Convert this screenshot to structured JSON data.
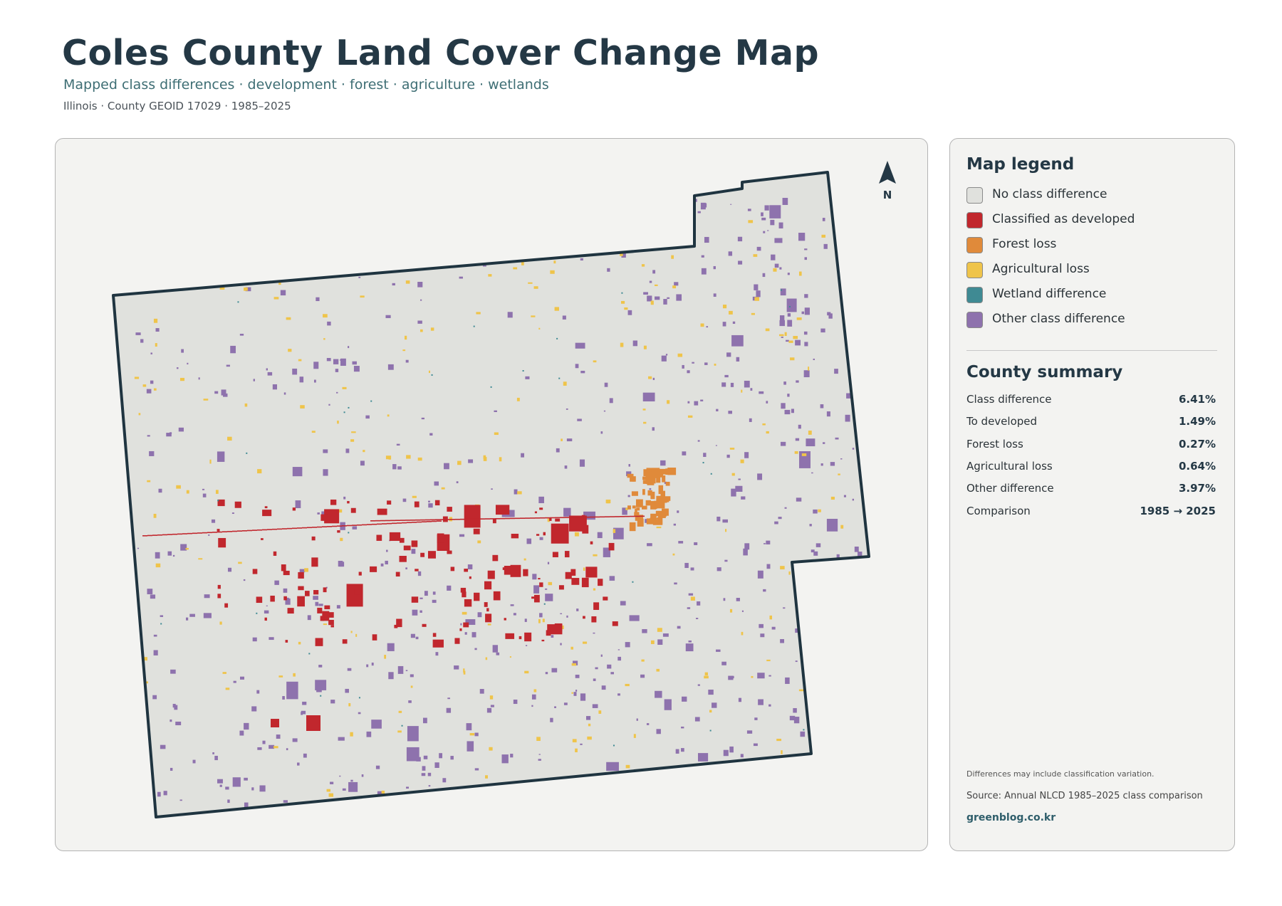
{
  "header": {
    "title": "Coles County Land Cover Change Map",
    "subtitle": "Mapped class differences · development · forest · agriculture · wetlands",
    "meta": "Illinois · County GEOID 17029 · 1985–2025"
  },
  "map": {
    "north_label": "N"
  },
  "legend": {
    "title": "Map legend",
    "items": [
      {
        "label": "No class difference",
        "color": "#e0e1dd"
      },
      {
        "label": "Classified as developed",
        "color": "#c1272d"
      },
      {
        "label": "Forest loss",
        "color": "#e08a3a"
      },
      {
        "label": "Agricultural loss",
        "color": "#efc44a"
      },
      {
        "label": "Wetland difference",
        "color": "#3f8a93"
      },
      {
        "label": "Other class difference",
        "color": "#8e72ad"
      }
    ]
  },
  "summary": {
    "title": "County summary",
    "rows": [
      [
        "Class difference",
        "6.41%"
      ],
      [
        "To developed",
        "1.49%"
      ],
      [
        "Forest loss",
        "0.27%"
      ],
      [
        "Agricultural loss",
        "0.64%"
      ],
      [
        "Other difference",
        "3.97%"
      ],
      [
        "Comparison",
        "1985 → 2025"
      ]
    ]
  },
  "footer": {
    "note": "Differences may include classification variation.",
    "source": "Source: Annual NLCD 1985–2025 class comparison",
    "site": "greenblog.co.kr"
  }
}
